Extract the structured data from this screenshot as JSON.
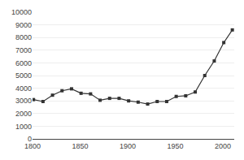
{
  "chart_data": {
    "type": "line",
    "x": [
      1801,
      1811,
      1821,
      1831,
      1841,
      1851,
      1861,
      1871,
      1881,
      1891,
      1901,
      1911,
      1921,
      1931,
      1941,
      1951,
      1961,
      1971,
      1981,
      1991,
      2001,
      2010
    ],
    "values": [
      3100,
      2950,
      3450,
      3800,
      3950,
      3600,
      3550,
      3050,
      3200,
      3200,
      3000,
      2900,
      2750,
      2950,
      2950,
      3350,
      3400,
      3700,
      5000,
      6150,
      7600,
      8600
    ],
    "color": "#333333",
    "marker": "square",
    "xlim": [
      1800,
      2012
    ],
    "ylim": [
      0,
      10000
    ],
    "xticks": [
      1800,
      1850,
      1900,
      1950,
      2000
    ],
    "yticks": [
      0,
      1000,
      2000,
      3000,
      4000,
      5000,
      6000,
      7000,
      8000,
      9000,
      10000
    ],
    "grid": "y"
  }
}
